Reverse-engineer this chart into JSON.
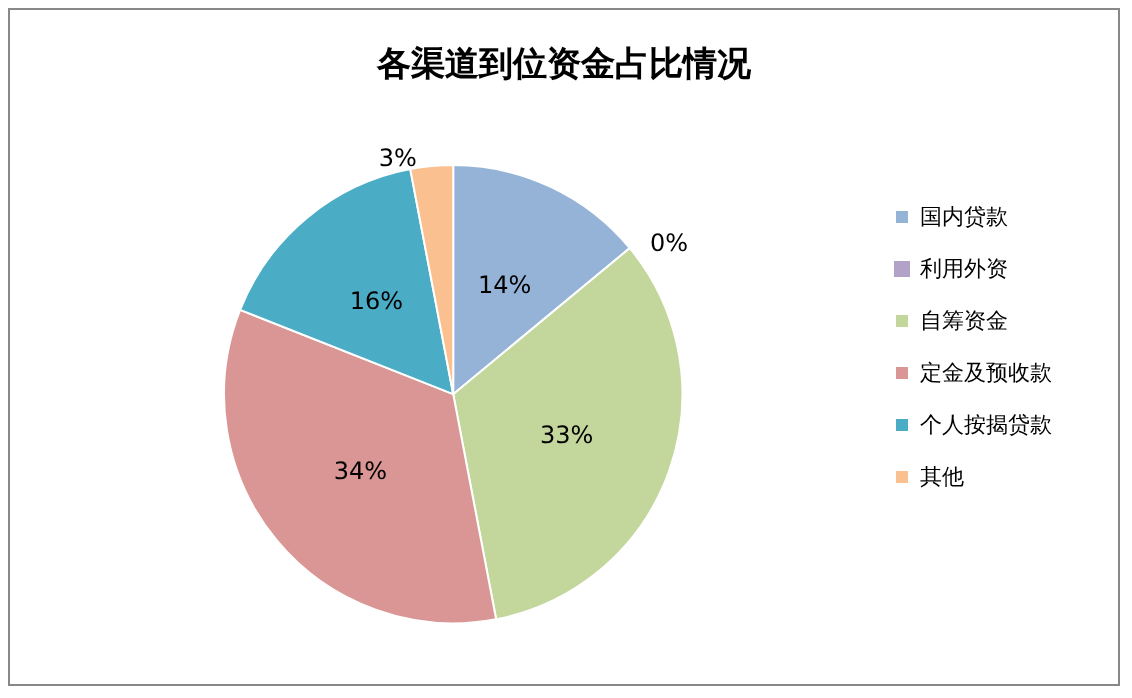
{
  "chart_data": {
    "type": "pie",
    "title": "各渠道到位资金占比情况",
    "categories": [
      "国内贷款",
      "利用外资",
      "自筹资金",
      "定金及预收款",
      "个人按揭贷款",
      "其他"
    ],
    "values": [
      14,
      0,
      33,
      34,
      16,
      3
    ],
    "colors": [
      "#95b3d7",
      "#b3a2c7",
      "#c3d69b",
      "#d99694",
      "#4bacc6",
      "#fac090"
    ],
    "value_labels": [
      "14%",
      "0%",
      "33%",
      "34%",
      "16%",
      "3%"
    ],
    "legend": "right"
  }
}
